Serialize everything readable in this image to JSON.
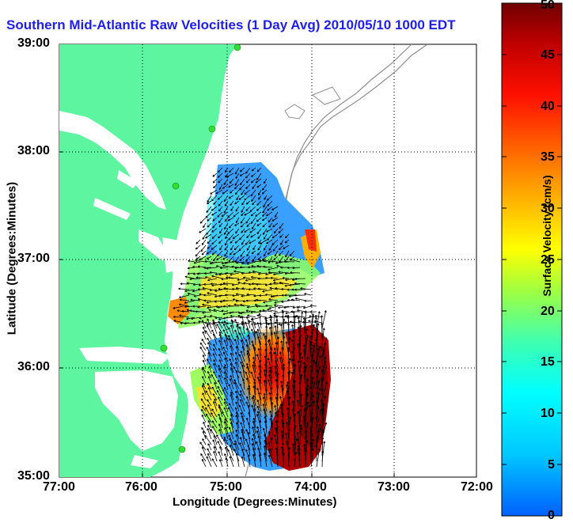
{
  "title": "Southern Mid-Atlantic Raw Velocities (1 Day Avg) 2010/05/10 1000 EDT",
  "xlabel": "Longitude (Degrees:Minutes)",
  "ylabel": "Latitude (Degrees:Minutes)",
  "x_ticks": [
    "77:00",
    "76:00",
    "75:00",
    "74:00",
    "73:00",
    "72:00"
  ],
  "y_ticks": [
    "39:00",
    "38:00",
    "37:00",
    "36:00",
    "35:00"
  ],
  "colorbar": {
    "label": "Surface Velocity (cm/s)",
    "ticks": [
      "50",
      "45",
      "40",
      "35",
      "30",
      "25",
      "20",
      "15",
      "10",
      "5",
      "0"
    ],
    "min": 0,
    "max": 50
  },
  "colors": {
    "land": "#5ef5a0",
    "title": "#1e1ef0",
    "stations": "#33dd33"
  }
}
